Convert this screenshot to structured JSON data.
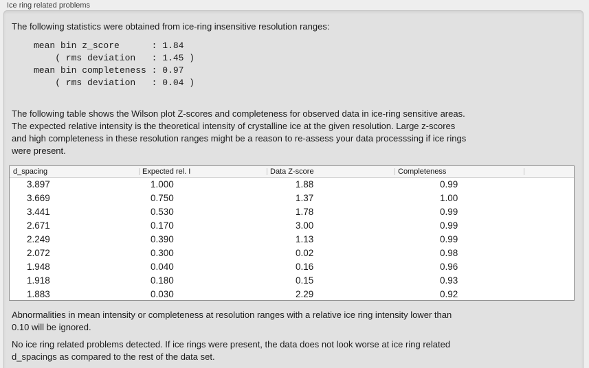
{
  "panel": {
    "title": "Ice ring related problems"
  },
  "intro": "The following statistics were obtained from ice-ring insensitive resolution ranges:",
  "stats_block": "mean bin z_score      : 1.84\n    ( rms deviation   : 1.45 )\nmean bin completeness : 0.97\n    ( rms deviation   : 0.04 )",
  "description": "The following table shows the Wilson plot Z-scores and completeness for observed data in ice-ring sensitive areas.\nThe expected relative intensity is the theoretical intensity of crystalline ice at the given resolution. Large z-scores\nand high completeness in these resolution ranges might be a reason to re-assess your data processsing if ice rings\nwere present.",
  "table": {
    "columns": [
      "d_spacing",
      "Expected rel. I",
      "Data Z-score",
      "Completeness"
    ],
    "rows": [
      [
        "3.897",
        "1.000",
        "1.88",
        "0.99"
      ],
      [
        "3.669",
        "0.750",
        "1.37",
        "1.00"
      ],
      [
        "3.441",
        "0.530",
        "1.78",
        "0.99"
      ],
      [
        "2.671",
        "0.170",
        "3.00",
        "0.99"
      ],
      [
        "2.249",
        "0.390",
        "1.13",
        "0.99"
      ],
      [
        "2.072",
        "0.300",
        "0.02",
        "0.98"
      ],
      [
        "1.948",
        "0.040",
        "0.16",
        "0.96"
      ],
      [
        "1.918",
        "0.180",
        "0.15",
        "0.93"
      ],
      [
        "1.883",
        "0.030",
        "2.29",
        "0.92"
      ]
    ]
  },
  "note": "Abnormalities in mean intensity or completeness at resolution ranges with a relative ice ring intensity lower than\n0.10 will be ignored.",
  "conclusion": "No ice ring related problems detected. If ice rings were present, the data does not look worse at ice ring related\nd_spacings as compared to the rest of the data set.",
  "colors": {
    "page_bg": "#eeeeee",
    "panel_bg": "#e1e1e1",
    "table_bg": "#ffffff",
    "table_header_bg": "#f5f5f5",
    "border": "#8f8f8f"
  }
}
